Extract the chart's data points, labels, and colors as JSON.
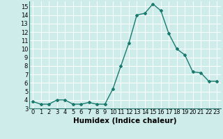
{
  "x": [
    0,
    1,
    2,
    3,
    4,
    5,
    6,
    7,
    8,
    9,
    10,
    11,
    12,
    13,
    14,
    15,
    16,
    17,
    18,
    19,
    20,
    21,
    22,
    23
  ],
  "y": [
    3.8,
    3.5,
    3.5,
    4.0,
    4.0,
    3.5,
    3.5,
    3.7,
    3.5,
    3.5,
    5.3,
    8.0,
    10.7,
    14.0,
    14.2,
    15.3,
    14.5,
    11.8,
    10.0,
    9.3,
    7.3,
    7.2,
    6.2,
    6.2
  ],
  "line_color": "#1a7a6e",
  "marker": "D",
  "marker_size": 2.0,
  "line_width": 1.0,
  "xlabel": "Humidex (Indice chaleur)",
  "xlim": [
    -0.5,
    23.5
  ],
  "ylim": [
    3,
    15.6
  ],
  "yticks": [
    3,
    4,
    5,
    6,
    7,
    8,
    9,
    10,
    11,
    12,
    13,
    14,
    15
  ],
  "xticks": [
    0,
    1,
    2,
    3,
    4,
    5,
    6,
    7,
    8,
    9,
    10,
    11,
    12,
    13,
    14,
    15,
    16,
    17,
    18,
    19,
    20,
    21,
    22,
    23
  ],
  "bg_color": "#ceecea",
  "grid_color": "#ffffff",
  "xlabel_fontsize": 7.5,
  "tick_fontsize": 6.0
}
